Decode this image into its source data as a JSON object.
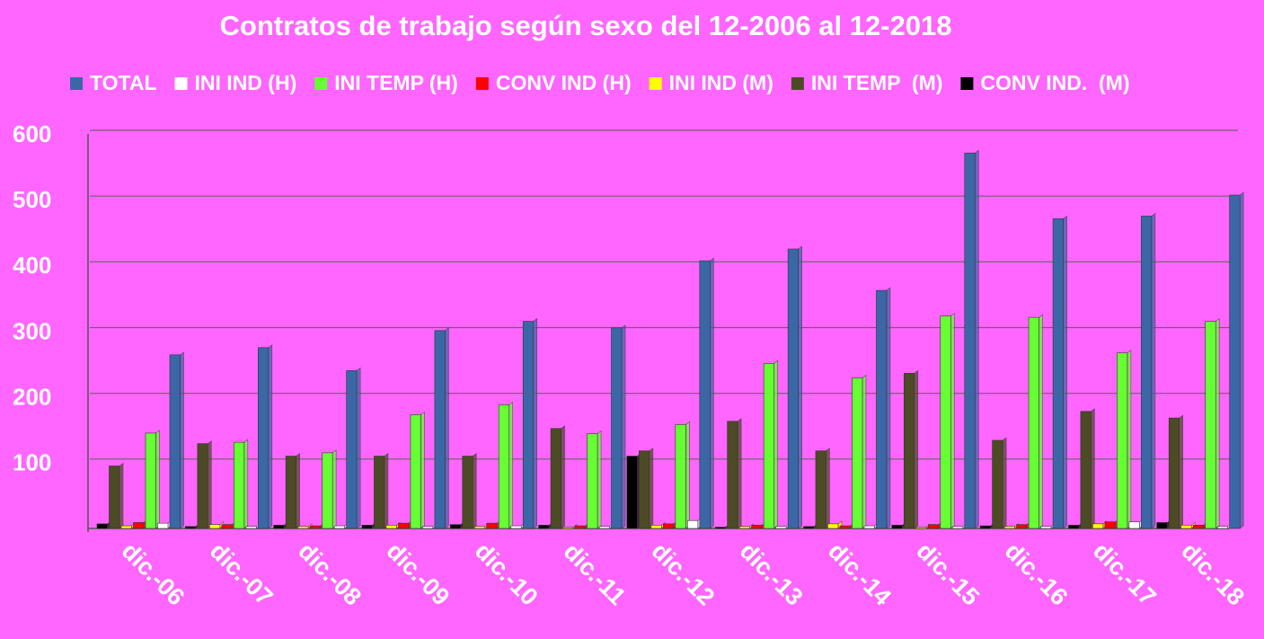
{
  "chart_data": {
    "type": "bar",
    "title": "Contratos de trabajo según sexo del 12-2006 al 12-2018",
    "categories": [
      "dic.-06",
      "dic.-07",
      "dic.-08",
      "dic.-09",
      "dic.-10",
      "dic.-11",
      "dic.-12",
      "dic.-13",
      "dic.-14",
      "dic.-15",
      "dic.-16",
      "dic.-17",
      "dic.-18"
    ],
    "series": [
      {
        "name": "TOTAL",
        "color": "#3b67a6",
        "values": [
          264,
          275,
          240,
          301,
          315,
          305,
          407,
          425,
          362,
          571,
          471,
          475,
          507
        ]
      },
      {
        "name": "INI IND (H)",
        "color": "#ffffff",
        "values": [
          8,
          3,
          4,
          3,
          4,
          3,
          12,
          3,
          4,
          3,
          3,
          10,
          3
        ]
      },
      {
        "name": "INI TEMP (H)",
        "color": "#66ff33",
        "values": [
          145,
          131,
          115,
          173,
          188,
          144,
          158,
          251,
          229,
          323,
          321,
          267,
          315
        ]
      },
      {
        "name": "CONV IND (H)",
        "color": "#ff0000",
        "values": [
          9,
          6,
          4,
          8,
          8,
          4,
          7,
          5,
          4,
          6,
          6,
          10,
          5
        ]
      },
      {
        "name": "INI IND (M)",
        "color": "#ffff00",
        "values": [
          4,
          6,
          3,
          5,
          3,
          2,
          5,
          3,
          7,
          2,
          3,
          7,
          5
        ]
      },
      {
        "name": "INI TEMP  (M)",
        "color": "#4d4a26",
        "values": [
          95,
          129,
          110,
          110,
          110,
          152,
          118,
          163,
          118,
          236,
          134,
          178,
          168
        ]
      },
      {
        "name": "CONV IND.  (M)",
        "color": "#000000",
        "values": [
          7,
          3,
          5,
          5,
          6,
          5,
          110,
          2,
          3,
          5,
          4,
          5,
          9
        ]
      }
    ],
    "ylim": [
      0,
      600
    ],
    "yticks": [
      100,
      200,
      300,
      400,
      500,
      600
    ],
    "grid": true
  }
}
